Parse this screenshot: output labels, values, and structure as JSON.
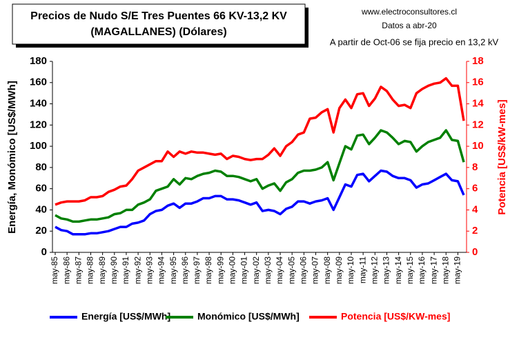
{
  "chart_data": {
    "type": "line",
    "title": "Precios de Nudo S/E Tres Puentes 66 KV-13,2 KV",
    "subtitle": "(MAGALLANES) (Dólares)",
    "source": "www.electroconsultores.cl",
    "date_note": "Datos a abr-20",
    "annotation": "A partir de Oct-06 se fija precio en 13,2 kV",
    "y_label": "Energía, Monómico [US$/MWh]",
    "y2_label": "Potencia [US$/kW-mes]",
    "categories": [
      "may-85",
      null,
      "may-86",
      null,
      "may-87",
      null,
      "may-88",
      null,
      "may-89",
      null,
      "may-90",
      null,
      "may-91",
      null,
      "may-92",
      null,
      "may-93",
      null,
      "may-94",
      null,
      "may-95",
      null,
      "may-96",
      null,
      "may-97",
      null,
      "may-98",
      null,
      "may-99",
      null,
      "may-00",
      null,
      "may-01",
      null,
      "may-02",
      null,
      "may-03",
      null,
      "may-04",
      null,
      "may-05",
      null,
      "may-06",
      null,
      "may-07",
      null,
      "may-08",
      null,
      "may-09",
      null,
      "may-10",
      null,
      "may-11",
      null,
      "may-12",
      null,
      "may-13",
      null,
      "may-14",
      null,
      "may-15",
      null,
      "may-16",
      null,
      "may-17",
      null,
      "may-18",
      null,
      "may-19",
      null
    ],
    "ylim": [
      0,
      180
    ],
    "yticks": [
      0,
      20,
      40,
      60,
      80,
      100,
      120,
      140,
      160,
      180
    ],
    "y2lim": [
      0,
      18
    ],
    "y2ticks": [
      0,
      2,
      4,
      6,
      8,
      10,
      12,
      14,
      16,
      18
    ],
    "grid": false,
    "legend": "bottom",
    "series": [
      {
        "name": "Energía [US$/MWh]",
        "color": "#0000ff",
        "values": [
          24,
          21,
          20,
          17,
          17,
          17,
          18,
          18,
          19,
          20,
          22,
          24,
          24,
          27,
          28,
          30,
          36,
          39,
          40,
          44,
          46,
          42,
          46,
          46,
          48,
          51,
          51,
          53,
          53,
          50,
          50,
          49,
          47,
          45,
          47,
          39,
          40,
          39,
          36,
          41,
          43,
          48,
          48,
          46,
          48,
          49,
          51,
          40,
          52,
          64,
          62,
          73,
          74,
          67,
          72,
          77,
          76,
          72,
          70,
          70,
          68,
          61,
          64,
          65,
          68,
          71,
          74,
          68,
          67,
          54
        ]
      },
      {
        "name": "Monómico [US$/MWh]",
        "color": "#008000",
        "values": [
          35,
          32,
          31,
          29,
          29,
          30,
          31,
          31,
          32,
          33,
          36,
          37,
          40,
          40,
          45,
          47,
          50,
          58,
          60,
          62,
          69,
          64,
          70,
          69,
          72,
          74,
          75,
          77,
          76,
          72,
          72,
          71,
          69,
          67,
          69,
          60,
          63,
          65,
          58,
          66,
          69,
          75,
          77,
          77,
          78,
          80,
          85,
          68,
          84,
          100,
          97,
          110,
          111,
          102,
          108,
          115,
          113,
          108,
          102,
          105,
          104,
          95,
          100,
          104,
          106,
          108,
          115,
          106,
          105,
          85
        ]
      },
      {
        "name": "Potencia [US$/KW-mes]",
        "color": "#ff0000",
        "axis": "y2",
        "values": [
          4.5,
          4.7,
          4.8,
          4.8,
          4.8,
          4.9,
          5.2,
          5.2,
          5.3,
          5.7,
          5.9,
          6.2,
          6.3,
          6.9,
          7.7,
          8.0,
          8.3,
          8.6,
          8.6,
          9.5,
          9.0,
          9.5,
          9.3,
          9.5,
          9.4,
          9.4,
          9.3,
          9.2,
          9.3,
          8.8,
          9.1,
          9.0,
          8.8,
          8.7,
          8.8,
          8.8,
          9.2,
          9.8,
          9.1,
          10.0,
          10.4,
          11.1,
          11.3,
          12.6,
          12.7,
          13.2,
          13.5,
          11.3,
          13.6,
          14.4,
          13.6,
          14.9,
          15.0,
          13.8,
          14.5,
          15.6,
          15.2,
          14.4,
          13.8,
          13.9,
          13.6,
          15.0,
          15.4,
          15.7,
          15.9,
          16.0,
          16.4,
          15.7,
          15.7,
          12.4
        ]
      }
    ]
  }
}
